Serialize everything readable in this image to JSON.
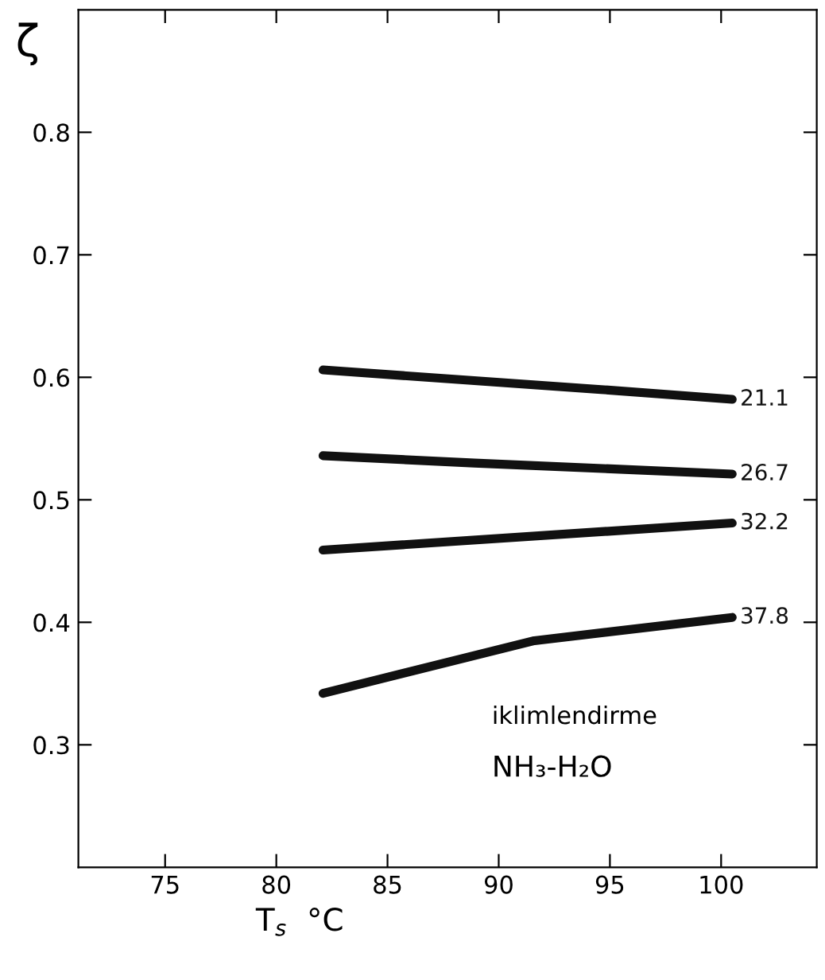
{
  "chart_data": {
    "type": "line",
    "ylabel": "ζ",
    "xlabel": "T$_{s}$  °C",
    "xlim": [
      71.1,
      104.3
    ],
    "xticks": [
      75,
      80,
      85,
      90,
      95,
      100
    ],
    "ylim": [
      0.2,
      0.9
    ],
    "yticks": [
      0.3,
      0.4,
      0.5,
      0.6,
      0.7,
      0.8
    ],
    "grid": false,
    "legend": false,
    "marker": "none",
    "line_style": "solid",
    "series": [
      {
        "name": "21.1",
        "color": "#111111",
        "x": [
          82.1,
          94.6,
          100.5
        ],
        "values": [
          0.606,
          0.59,
          0.582
        ]
      },
      {
        "name": "26.7",
        "color": "#111111",
        "x": [
          82.1,
          88.9,
          100.5
        ],
        "values": [
          0.536,
          0.53,
          0.521
        ]
      },
      {
        "name": "32.2",
        "color": "#111111",
        "x": [
          82.1,
          100.5
        ],
        "values": [
          0.459,
          0.481
        ]
      },
      {
        "name": "37.8",
        "color": "#111111",
        "x": [
          82.1,
          91.6,
          100.5
        ],
        "values": [
          0.342,
          0.385,
          0.404
        ]
      }
    ],
    "annotations": [
      "iklimlendirme",
      "NH₃-H₂O"
    ]
  }
}
